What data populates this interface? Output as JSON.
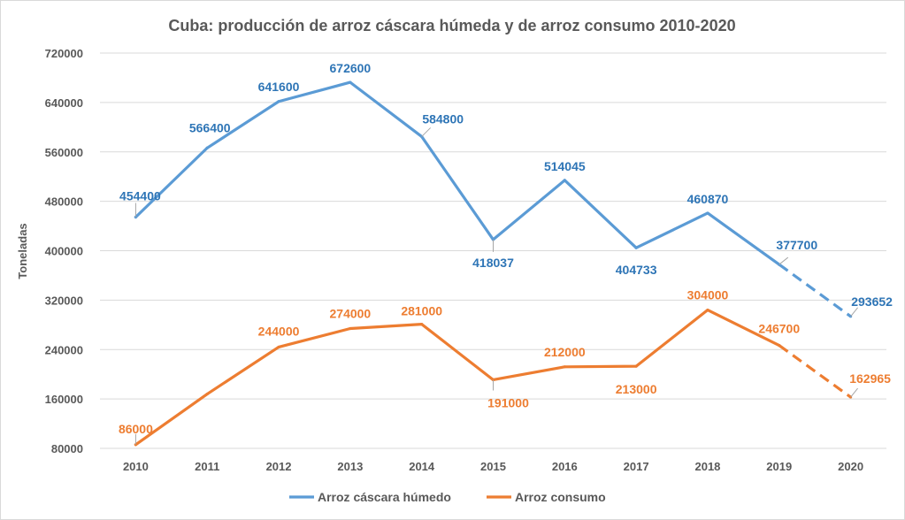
{
  "chart_data": {
    "type": "line",
    "title": "Cuba: producción de arroz cáscara húmeda y de arroz consumo 2010-2020",
    "xlabel": "",
    "ylabel": "Toneladas",
    "ylim": [
      80000,
      720000
    ],
    "yticks": [
      "80000",
      "160000",
      "240000",
      "320000",
      "400000",
      "480000",
      "560000",
      "640000",
      "720000"
    ],
    "categories": [
      "2010",
      "2011",
      "2012",
      "2013",
      "2014",
      "2015",
      "2016",
      "2017",
      "2018",
      "2019",
      "2020"
    ],
    "grid": true,
    "legend_position": "bottom",
    "series": [
      {
        "name": "Arroz cáscara húmedo",
        "color": "#5b9bd5",
        "values": [
          454400,
          566400,
          641600,
          672600,
          584800,
          418037,
          514045,
          404733,
          460870,
          377700,
          293652
        ],
        "labels": [
          "454400",
          "",
          "641600",
          "672600",
          "584800",
          "418037",
          "514045",
          "404733",
          "460870",
          "377700",
          "293652"
        ],
        "label_2011": "566400",
        "dashed_from_index": 9
      },
      {
        "name": "Arroz consumo",
        "color": "#ed7d31",
        "values": [
          86000,
          168000,
          244000,
          274000,
          281000,
          191000,
          212000,
          213000,
          304000,
          246700,
          162965
        ],
        "labels": [
          "86000",
          "",
          "244000",
          "274000",
          "281000",
          "191000",
          "212000",
          "213000",
          "304000",
          "246700",
          "162965"
        ],
        "dashed_from_index": 9
      }
    ]
  }
}
